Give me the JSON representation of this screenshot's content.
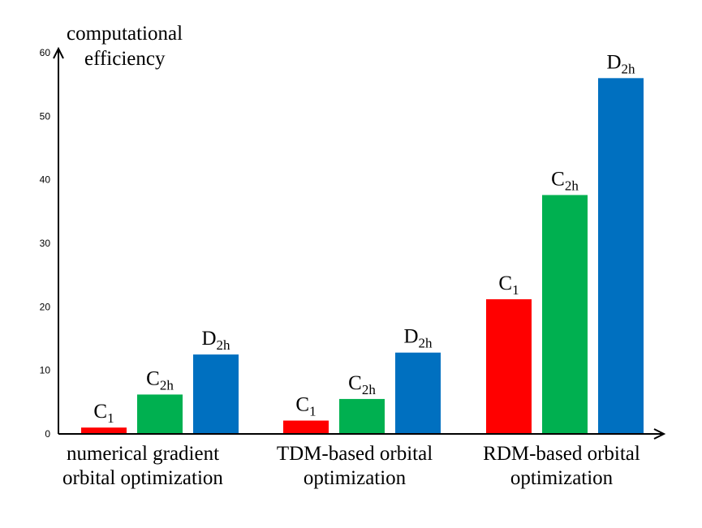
{
  "chart_data": {
    "type": "bar",
    "ylabel_lines": [
      "computational",
      "efficiency"
    ],
    "xlabel": "",
    "ylim": [
      0,
      60
    ],
    "y_ticks": [
      0,
      10,
      20,
      30,
      40,
      50,
      60
    ],
    "grid": false,
    "legend": "none",
    "categories": [
      [
        "numerical gradient",
        "orbital optimization"
      ],
      [
        "TDM-based orbital",
        "optimization"
      ],
      [
        "RDM-based orbital",
        "optimization"
      ]
    ],
    "series": [
      {
        "label_base": "C",
        "label_sub": "1",
        "color": "#ff0000",
        "values": [
          1.0,
          2.1,
          21.2
        ]
      },
      {
        "label_base": "C",
        "label_sub": "2h",
        "color": "#00b050",
        "values": [
          6.2,
          5.5,
          37.6
        ]
      },
      {
        "label_base": "D",
        "label_sub": "2h",
        "color": "#0070c0",
        "values": [
          12.5,
          12.8,
          56.0
        ]
      }
    ]
  }
}
